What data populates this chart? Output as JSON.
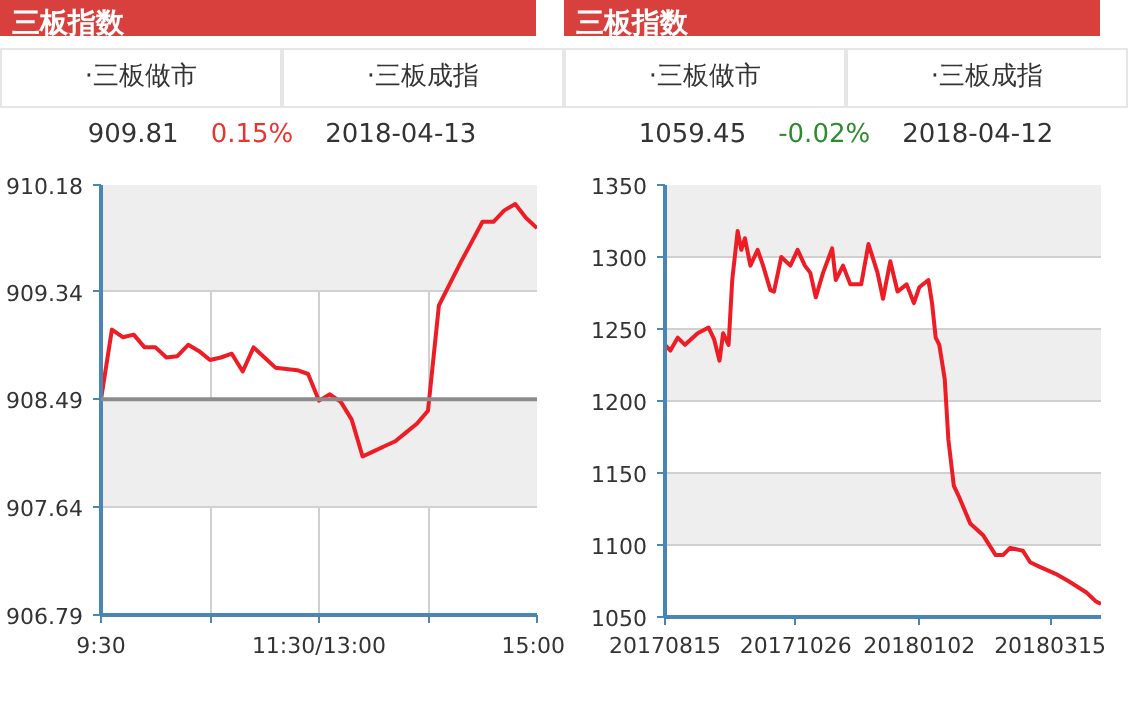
{
  "chart_data": [
    {
      "type": "line",
      "title": "三板指数",
      "annotations": [
        "·三板做市",
        "·三板成指",
        "909.81",
        "0.15%",
        "2018-04-13"
      ],
      "categories": [
        "9:30",
        null,
        null,
        null,
        null,
        null,
        null,
        null,
        null,
        null,
        null,
        null,
        null,
        null,
        null,
        null,
        null,
        null,
        null,
        null,
        "11:30/13:00",
        null,
        null,
        null,
        null,
        null,
        null,
        null,
        null,
        null,
        null,
        null,
        null,
        null,
        null,
        null,
        null,
        null,
        null,
        null,
        "15:00"
      ],
      "series": [
        {
          "color": "#ee1c25",
          "values": [
            908.49,
            909.04,
            908.98,
            909.0,
            908.9,
            908.9,
            908.82,
            908.83,
            908.92,
            908.87,
            908.8,
            908.82,
            908.85,
            908.71,
            908.9,
            908.82,
            908.74,
            908.73,
            908.72,
            908.69,
            908.48,
            908.53,
            908.47,
            908.33,
            908.04,
            908.08,
            908.12,
            908.16,
            908.23,
            908.3,
            908.4,
            909.23,
            909.4,
            909.57,
            909.73,
            909.89,
            909.89,
            909.98,
            910.03,
            909.92,
            909.84
          ]
        }
      ],
      "ylim": [
        906.79,
        910.18
      ],
      "yticks": [
        906.79,
        907.64,
        908.49,
        909.34,
        910.18
      ],
      "grid": true,
      "ref_lines": [
        {
          "axis": "y",
          "value": 908.49,
          "color": "#8c8c8c"
        }
      ]
    },
    {
      "type": "line",
      "title": "三板指数",
      "annotations": [
        "·三板做市",
        "·三板成指",
        "1059.45",
        "-0.02%",
        "2018-04-12"
      ],
      "x": [
        "2017-08-15",
        "2017-08-18",
        "2017-08-22",
        "2017-08-26",
        "2017-09-02",
        "2017-09-08",
        "2017-09-11",
        "2017-09-14",
        "2017-09-16",
        "2017-09-19",
        "2017-09-21",
        "2017-09-24",
        "2017-09-26",
        "2017-09-28",
        "2017-10-01",
        "2017-10-05",
        "2017-10-08",
        "2017-10-12",
        "2017-10-14",
        "2017-10-18",
        "2017-10-23",
        "2017-10-27",
        "2017-10-31",
        "2017-11-03",
        "2017-11-06",
        "2017-11-10",
        "2017-11-15",
        "2017-11-17",
        "2017-11-21",
        "2017-11-25",
        "2017-12-01",
        "2017-12-05",
        "2017-12-10",
        "2017-12-13",
        "2017-12-17",
        "2017-12-21",
        "2017-12-26",
        "2017-12-30",
        "2018-01-02",
        "2018-01-07",
        "2018-01-09",
        "2018-01-11",
        "2018-01-13",
        "2018-01-16",
        "2018-01-18",
        "2018-01-21",
        "2018-01-24",
        "2018-01-30",
        "2018-02-06",
        "2018-02-13",
        "2018-02-17",
        "2018-02-21",
        "2018-02-28",
        "2018-03-04",
        "2018-03-09",
        "2018-03-18",
        "2018-03-25",
        "2018-04-04",
        "2018-04-09",
        "2018-04-12"
      ],
      "series": [
        {
          "color": "#ee1c25",
          "values": [
            1239,
            1235,
            1244,
            1239,
            1247,
            1251,
            1243,
            1228,
            1247,
            1239,
            1284,
            1318,
            1305,
            1313,
            1294,
            1305,
            1294,
            1277,
            1276,
            1300,
            1294,
            1305,
            1294,
            1289,
            1272,
            1289,
            1306,
            1284,
            1294,
            1281,
            1281,
            1309,
            1289,
            1271,
            1297,
            1276,
            1281,
            1268,
            1279,
            1284,
            1268,
            1244,
            1239,
            1215,
            1173,
            1141,
            1133,
            1115,
            1107,
            1093,
            1093,
            1098,
            1096,
            1088,
            1085,
            1080,
            1075,
            1067,
            1061,
            1059
          ]
        }
      ],
      "xlim": [
        "2017-08-15",
        "2018-04-12"
      ],
      "xticks": [
        {
          "value": "2017-08-15",
          "label": "20170815"
        },
        {
          "value": "2017-10-26",
          "label": "20171026"
        },
        {
          "value": "2018-01-02",
          "label": "20180102"
        },
        {
          "value": "2018-03-15",
          "label": "20180315"
        }
      ],
      "ylim": [
        1050,
        1350
      ],
      "yticks": [
        1050,
        1100,
        1150,
        1200,
        1250,
        1300,
        1350
      ],
      "grid": "y"
    }
  ]
}
